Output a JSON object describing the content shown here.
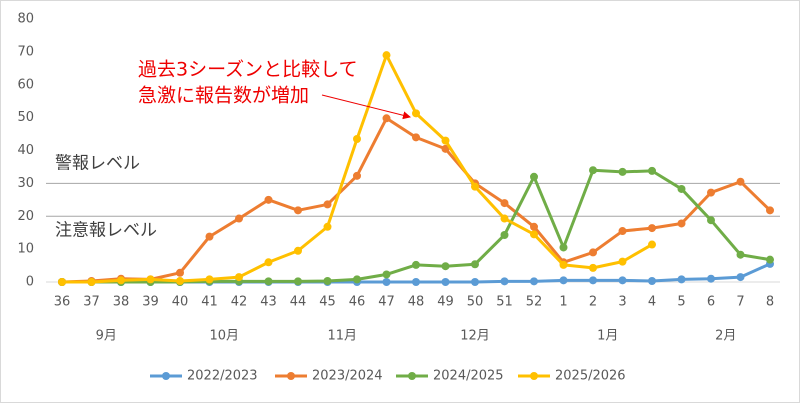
{
  "chart_data": {
    "type": "line",
    "categories": [
      "36",
      "37",
      "38",
      "39",
      "40",
      "41",
      "42",
      "43",
      "44",
      "45",
      "46",
      "47",
      "48",
      "49",
      "50",
      "51",
      "52",
      "1",
      "2",
      "3",
      "4",
      "5",
      "6",
      "7",
      "8"
    ],
    "month_groups": [
      {
        "label": "9月",
        "span": 4
      },
      {
        "label": "10月",
        "span": 4
      },
      {
        "label": "11月",
        "span": 4
      },
      {
        "label": "12月",
        "span": 5
      },
      {
        "label": "1月",
        "span": 4
      },
      {
        "label": "2月",
        "span": 4
      }
    ],
    "ylim": [
      0,
      80
    ],
    "yticks": [
      0,
      10,
      20,
      30,
      40,
      50,
      60,
      70,
      80
    ],
    "reference_lines": [
      {
        "value": 30,
        "label": "警報レベル"
      },
      {
        "value": 20,
        "label": "注意報レベル"
      }
    ],
    "annotation": [
      "過去3シーズンと比較して",
      "急激に報告数が増加"
    ],
    "series": [
      {
        "name": "2022/2023",
        "color": "#5b9bd5",
        "values": [
          0,
          0,
          0,
          0,
          0,
          0,
          0,
          0,
          0,
          0,
          0,
          0,
          0,
          0,
          0,
          0.2,
          0.2,
          0.5,
          0.5,
          0.5,
          0.3,
          0.8,
          1,
          1.5,
          5.5
        ]
      },
      {
        "name": "2023/2024",
        "color": "#ed7d31",
        "values": [
          0,
          0.3,
          1,
          0.8,
          2.8,
          13.8,
          19.3,
          25,
          21.8,
          23.6,
          32.3,
          49.8,
          44,
          40.5,
          30,
          24,
          16.8,
          6,
          9,
          15.5,
          16.4,
          17.8,
          27.2,
          30.5,
          21.8
        ]
      },
      {
        "name": "2024/2025",
        "color": "#70ad47",
        "values": [
          0,
          0,
          0,
          0,
          0,
          0.2,
          0.2,
          0.2,
          0.2,
          0.3,
          0.8,
          2.3,
          5.2,
          4.8,
          5.4,
          14.3,
          32,
          10.5,
          34,
          33.5,
          33.8,
          28.3,
          18.8,
          8.3,
          6.8
        ]
      },
      {
        "name": "2025/2026",
        "color": "#ffc000",
        "values": [
          0,
          0,
          0.5,
          0.8,
          0.3,
          0.8,
          1.5,
          6,
          9.5,
          16.8,
          43.5,
          69,
          51.3,
          43,
          29,
          19.3,
          14.5,
          5.2,
          4.3,
          6.2,
          11.4,
          null,
          null,
          null,
          null
        ]
      }
    ]
  }
}
